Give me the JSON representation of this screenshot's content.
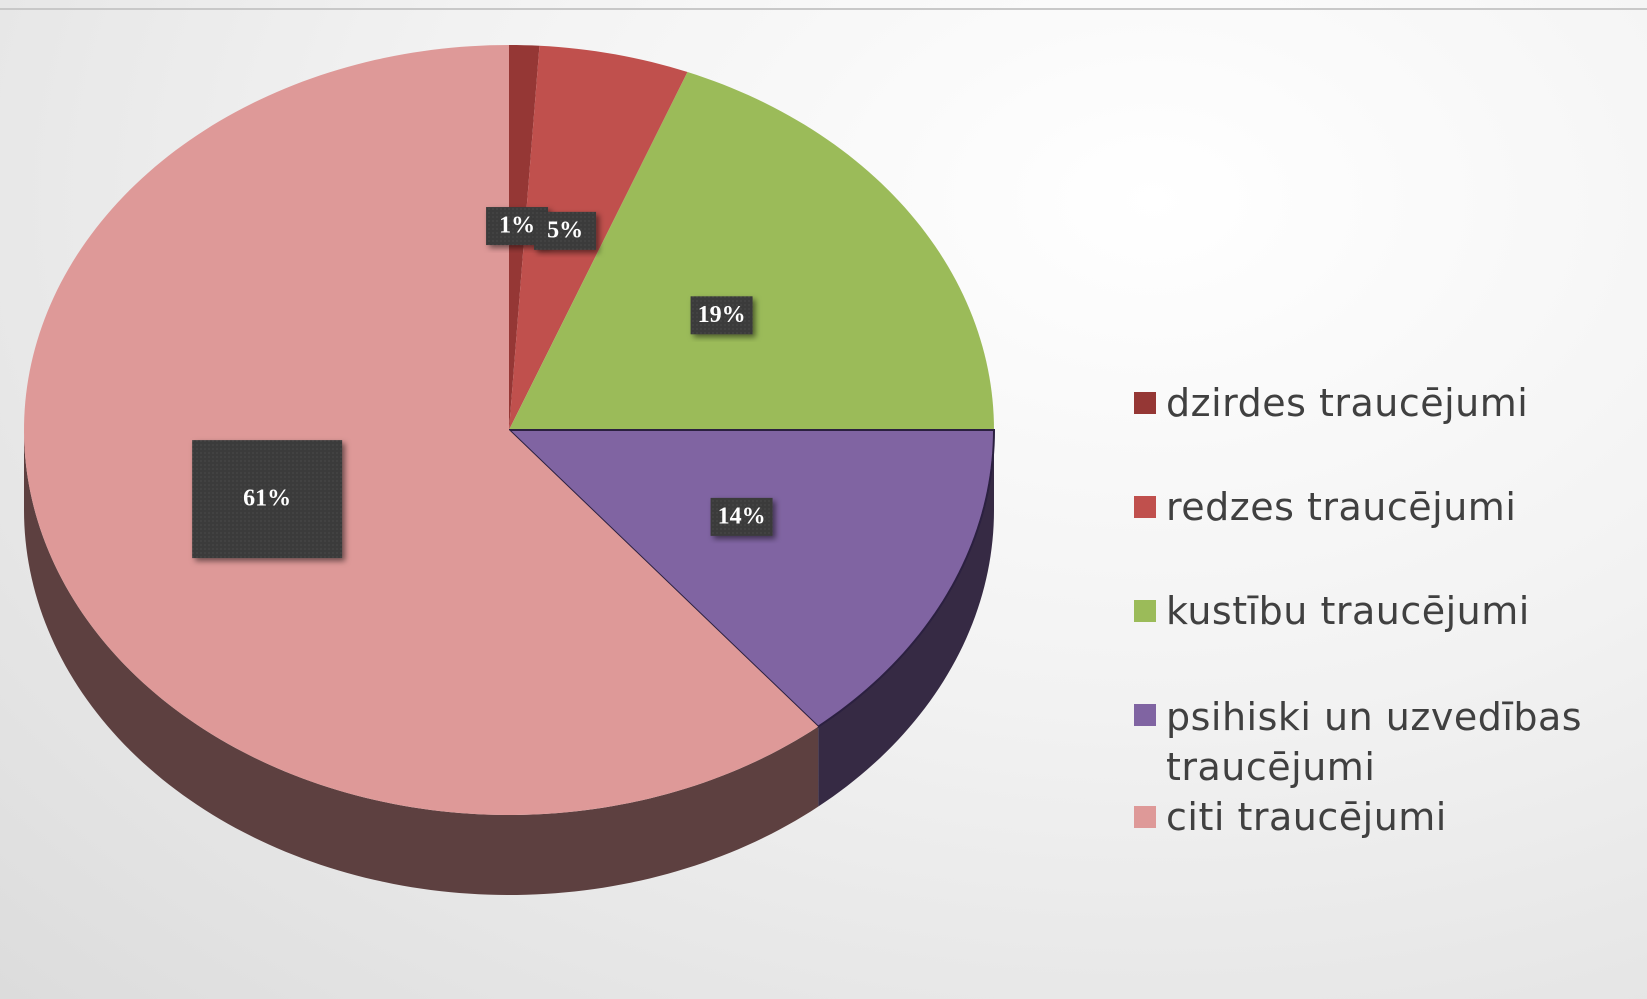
{
  "chart_data": {
    "type": "pie",
    "categories": [
      "dzirdes traucējumi",
      "redzes traucējumi",
      "kustību traucējumi",
      "psihiski un uzvedības traucējumi",
      "citi traucējumi"
    ],
    "values": [
      1,
      5,
      19,
      14,
      61
    ],
    "value_labels": [
      "1%",
      "5%",
      "19%",
      "14%",
      "61%"
    ],
    "colors": [
      "#953735",
      "#c0504d",
      "#9bbb59",
      "#8064a2",
      "#de9998"
    ],
    "legend": "right"
  }
}
